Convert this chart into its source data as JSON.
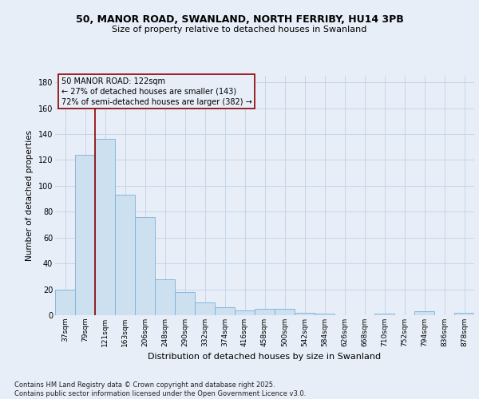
{
  "title_line1": "50, MANOR ROAD, SWANLAND, NORTH FERRIBY, HU14 3PB",
  "title_line2": "Size of property relative to detached houses in Swanland",
  "xlabel": "Distribution of detached houses by size in Swanland",
  "ylabel": "Number of detached properties",
  "footnote": "Contains HM Land Registry data © Crown copyright and database right 2025.\nContains public sector information licensed under the Open Government Licence v3.0.",
  "bar_labels": [
    "37sqm",
    "79sqm",
    "121sqm",
    "163sqm",
    "206sqm",
    "248sqm",
    "290sqm",
    "332sqm",
    "374sqm",
    "416sqm",
    "458sqm",
    "500sqm",
    "542sqm",
    "584sqm",
    "626sqm",
    "668sqm",
    "710sqm",
    "752sqm",
    "794sqm",
    "836sqm",
    "878sqm"
  ],
  "bar_values": [
    20,
    124,
    136,
    93,
    76,
    28,
    18,
    10,
    6,
    4,
    5,
    5,
    2,
    1,
    0,
    0,
    1,
    0,
    3,
    0,
    2
  ],
  "bar_color": "#cce0f0",
  "bar_edge_color": "#7ab0d8",
  "vline_color": "#8b0000",
  "annotation_box_text": "50 MANOR ROAD: 122sqm\n← 27% of detached houses are smaller (143)\n72% of semi-detached houses are larger (382) →",
  "annotation_box_color": "#8b0000",
  "background_color": "#e8eef8",
  "grid_color": "#c5d5e8",
  "ylim": [
    0,
    185
  ],
  "yticks": [
    0,
    20,
    40,
    60,
    80,
    100,
    120,
    140,
    160,
    180
  ]
}
